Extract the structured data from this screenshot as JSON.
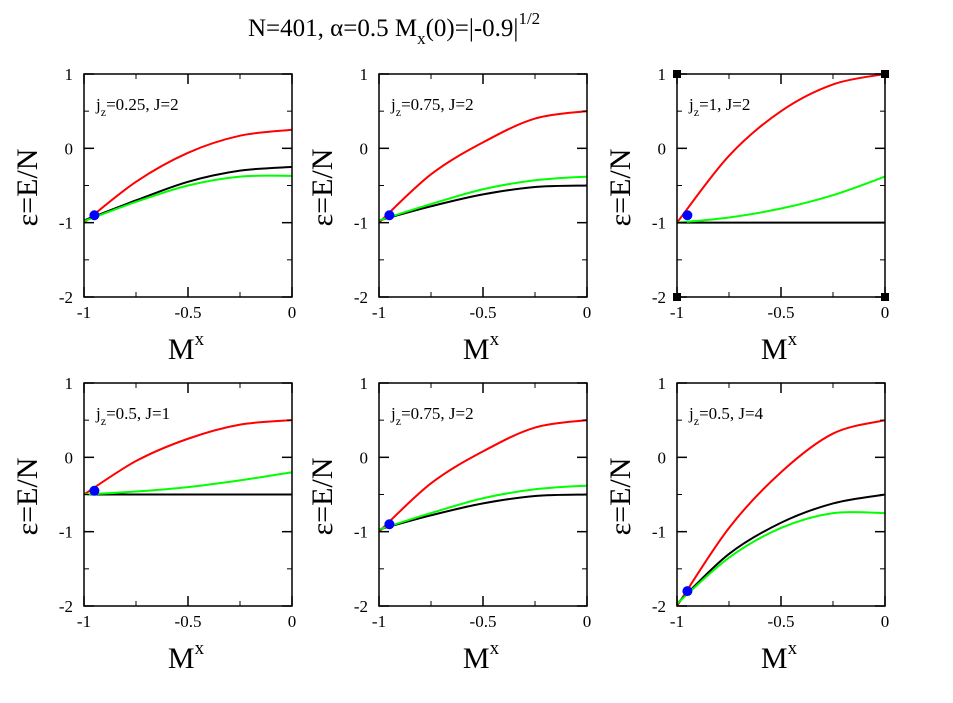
{
  "figure": {
    "title_main": "N=401, α=0.5 M",
    "title_sub": "x",
    "title_tail": "(0)=|-0.9|",
    "title_sup": "1/2"
  },
  "chart_data": [
    {
      "type": "line",
      "annotation": {
        "main": "j",
        "sub": "z",
        "tail": "=0.25, J=2"
      },
      "xlabel": {
        "main": "M",
        "sup": "x"
      },
      "ylabel": "ε=E/N",
      "xlim": [
        -1,
        0
      ],
      "ylim": [
        -2,
        1
      ],
      "xticks": [
        "-1",
        "-0.5",
        "0"
      ],
      "yticks": [
        "-2",
        "-1",
        "0",
        "1"
      ],
      "grid": false,
      "series": [
        {
          "color": "#ff0000",
          "x": [
            -1,
            -0.75,
            -0.5,
            -0.25,
            0
          ],
          "y": [
            -1.0,
            -0.45,
            -0.06,
            0.17,
            0.25
          ]
        },
        {
          "color": "#000000",
          "x": [
            -1,
            -0.75,
            -0.5,
            -0.25,
            0
          ],
          "y": [
            -0.97,
            -0.7,
            -0.45,
            -0.3,
            -0.25
          ]
        },
        {
          "color": "#00ff00",
          "x": [
            -1,
            -0.75,
            -0.5,
            -0.25,
            0
          ],
          "y": [
            -0.98,
            -0.72,
            -0.5,
            -0.38,
            -0.37
          ]
        }
      ],
      "points": [
        {
          "x": -0.95,
          "y": -0.9,
          "color": "#0000ff"
        }
      ]
    },
    {
      "type": "line",
      "annotation": {
        "main": "j",
        "sub": "z",
        "tail": "=0.75, J=2"
      },
      "xlabel": {
        "main": "M",
        "sup": "x"
      },
      "ylabel": "ε=E/N",
      "xlim": [
        -1,
        0
      ],
      "ylim": [
        -2,
        1
      ],
      "xticks": [
        "-1",
        "-0.5",
        "0"
      ],
      "yticks": [
        "-2",
        "-1",
        "0",
        "1"
      ],
      "grid": false,
      "series": [
        {
          "color": "#ff0000",
          "x": [
            -1,
            -0.75,
            -0.5,
            -0.25,
            0
          ],
          "y": [
            -1.0,
            -0.35,
            0.08,
            0.4,
            0.5
          ]
        },
        {
          "color": "#000000",
          "x": [
            -1,
            -0.75,
            -0.5,
            -0.25,
            0
          ],
          "y": [
            -0.97,
            -0.78,
            -0.62,
            -0.52,
            -0.5
          ]
        },
        {
          "color": "#00ff00",
          "x": [
            -1,
            -0.75,
            -0.5,
            -0.25,
            0
          ],
          "y": [
            -0.97,
            -0.75,
            -0.55,
            -0.43,
            -0.38
          ]
        }
      ],
      "points": [
        {
          "x": -0.95,
          "y": -0.9,
          "color": "#0000ff"
        }
      ]
    },
    {
      "type": "line",
      "annotation": {
        "main": "j",
        "sub": "z",
        "tail": "=1, J=2"
      },
      "xlabel": {
        "main": "M",
        "sup": "x"
      },
      "ylabel": "ε=E/N",
      "xlim": [
        -1,
        0
      ],
      "ylim": [
        -2,
        1
      ],
      "xticks": [
        "-1",
        "-0.5",
        "0"
      ],
      "yticks": [
        "-2",
        "-1",
        "0",
        "1"
      ],
      "grid": false,
      "series": [
        {
          "color": "#ff0000",
          "x": [
            -1,
            -0.75,
            -0.5,
            -0.25,
            0
          ],
          "y": [
            -1.0,
            -0.1,
            0.5,
            0.86,
            1.0
          ]
        },
        {
          "color": "#000000",
          "x": [
            -1,
            -0.75,
            -0.5,
            -0.25,
            0
          ],
          "y": [
            -1.0,
            -1.0,
            -1.0,
            -1.0,
            -1.0
          ]
        },
        {
          "color": "#00ff00",
          "x": [
            -1,
            -0.75,
            -0.5,
            -0.25,
            0
          ],
          "y": [
            -1.0,
            -0.93,
            -0.81,
            -0.63,
            -0.38
          ]
        }
      ],
      "points": [
        {
          "x": -0.95,
          "y": -0.9,
          "color": "#0000ff"
        }
      ]
    },
    {
      "type": "line",
      "annotation": {
        "main": "j",
        "sub": "z",
        "tail": "=0.5, J=1"
      },
      "xlabel": {
        "main": "M",
        "sup": "x"
      },
      "ylabel": "ε=E/N",
      "xlim": [
        -1,
        0
      ],
      "ylim": [
        -2,
        1
      ],
      "xticks": [
        "-1",
        "-0.5",
        "0"
      ],
      "yticks": [
        "-2",
        "-1",
        "0",
        "1"
      ],
      "grid": false,
      "series": [
        {
          "color": "#ff0000",
          "x": [
            -1,
            -0.75,
            -0.5,
            -0.25,
            0
          ],
          "y": [
            -0.5,
            -0.05,
            0.25,
            0.44,
            0.5
          ]
        },
        {
          "color": "#000000",
          "x": [
            -1,
            -0.75,
            -0.5,
            -0.25,
            0
          ],
          "y": [
            -0.5,
            -0.5,
            -0.5,
            -0.5,
            -0.5
          ]
        },
        {
          "color": "#00ff00",
          "x": [
            -1,
            -0.75,
            -0.5,
            -0.25,
            0
          ],
          "y": [
            -0.5,
            -0.46,
            -0.4,
            -0.31,
            -0.2
          ]
        }
      ],
      "points": [
        {
          "x": -0.95,
          "y": -0.45,
          "color": "#0000ff"
        }
      ]
    },
    {
      "type": "line",
      "annotation": {
        "main": "j",
        "sub": "z",
        "tail": "=0.75, J=2"
      },
      "xlabel": {
        "main": "M",
        "sup": "x"
      },
      "ylabel": "ε=E/N",
      "xlim": [
        -1,
        0
      ],
      "ylim": [
        -2,
        1
      ],
      "xticks": [
        "-1",
        "-0.5",
        "0"
      ],
      "yticks": [
        "-2",
        "-1",
        "0",
        "1"
      ],
      "grid": false,
      "series": [
        {
          "color": "#ff0000",
          "x": [
            -1,
            -0.75,
            -0.5,
            -0.25,
            0
          ],
          "y": [
            -1.0,
            -0.35,
            0.08,
            0.4,
            0.5
          ]
        },
        {
          "color": "#000000",
          "x": [
            -1,
            -0.75,
            -0.5,
            -0.25,
            0
          ],
          "y": [
            -0.97,
            -0.78,
            -0.62,
            -0.52,
            -0.5
          ]
        },
        {
          "color": "#00ff00",
          "x": [
            -1,
            -0.75,
            -0.5,
            -0.25,
            0
          ],
          "y": [
            -0.97,
            -0.75,
            -0.55,
            -0.43,
            -0.38
          ]
        }
      ],
      "points": [
        {
          "x": -0.95,
          "y": -0.9,
          "color": "#0000ff"
        }
      ]
    },
    {
      "type": "line",
      "annotation": {
        "main": "j",
        "sub": "z",
        "tail": "=0.5, J=4"
      },
      "xlabel": {
        "main": "M",
        "sup": "x"
      },
      "ylabel": "ε=E/N",
      "xlim": [
        -1,
        0
      ],
      "ylim": [
        -2,
        1
      ],
      "xticks": [
        "-1",
        "-0.5",
        "0"
      ],
      "yticks": [
        "-2",
        "-1",
        "0",
        "1"
      ],
      "grid": false,
      "series": [
        {
          "color": "#ff0000",
          "x": [
            -1,
            -0.75,
            -0.5,
            -0.25,
            0
          ],
          "y": [
            -2.0,
            -0.95,
            -0.2,
            0.32,
            0.5
          ]
        },
        {
          "color": "#000000",
          "x": [
            -1,
            -0.75,
            -0.5,
            -0.25,
            0
          ],
          "y": [
            -1.97,
            -1.3,
            -0.88,
            -0.62,
            -0.5
          ]
        },
        {
          "color": "#00ff00",
          "x": [
            -1,
            -0.75,
            -0.5,
            -0.25,
            0
          ],
          "y": [
            -1.97,
            -1.35,
            -0.95,
            -0.75,
            -0.75
          ]
        }
      ],
      "points": [
        {
          "x": -0.95,
          "y": -1.8,
          "color": "#0000ff"
        }
      ]
    }
  ]
}
